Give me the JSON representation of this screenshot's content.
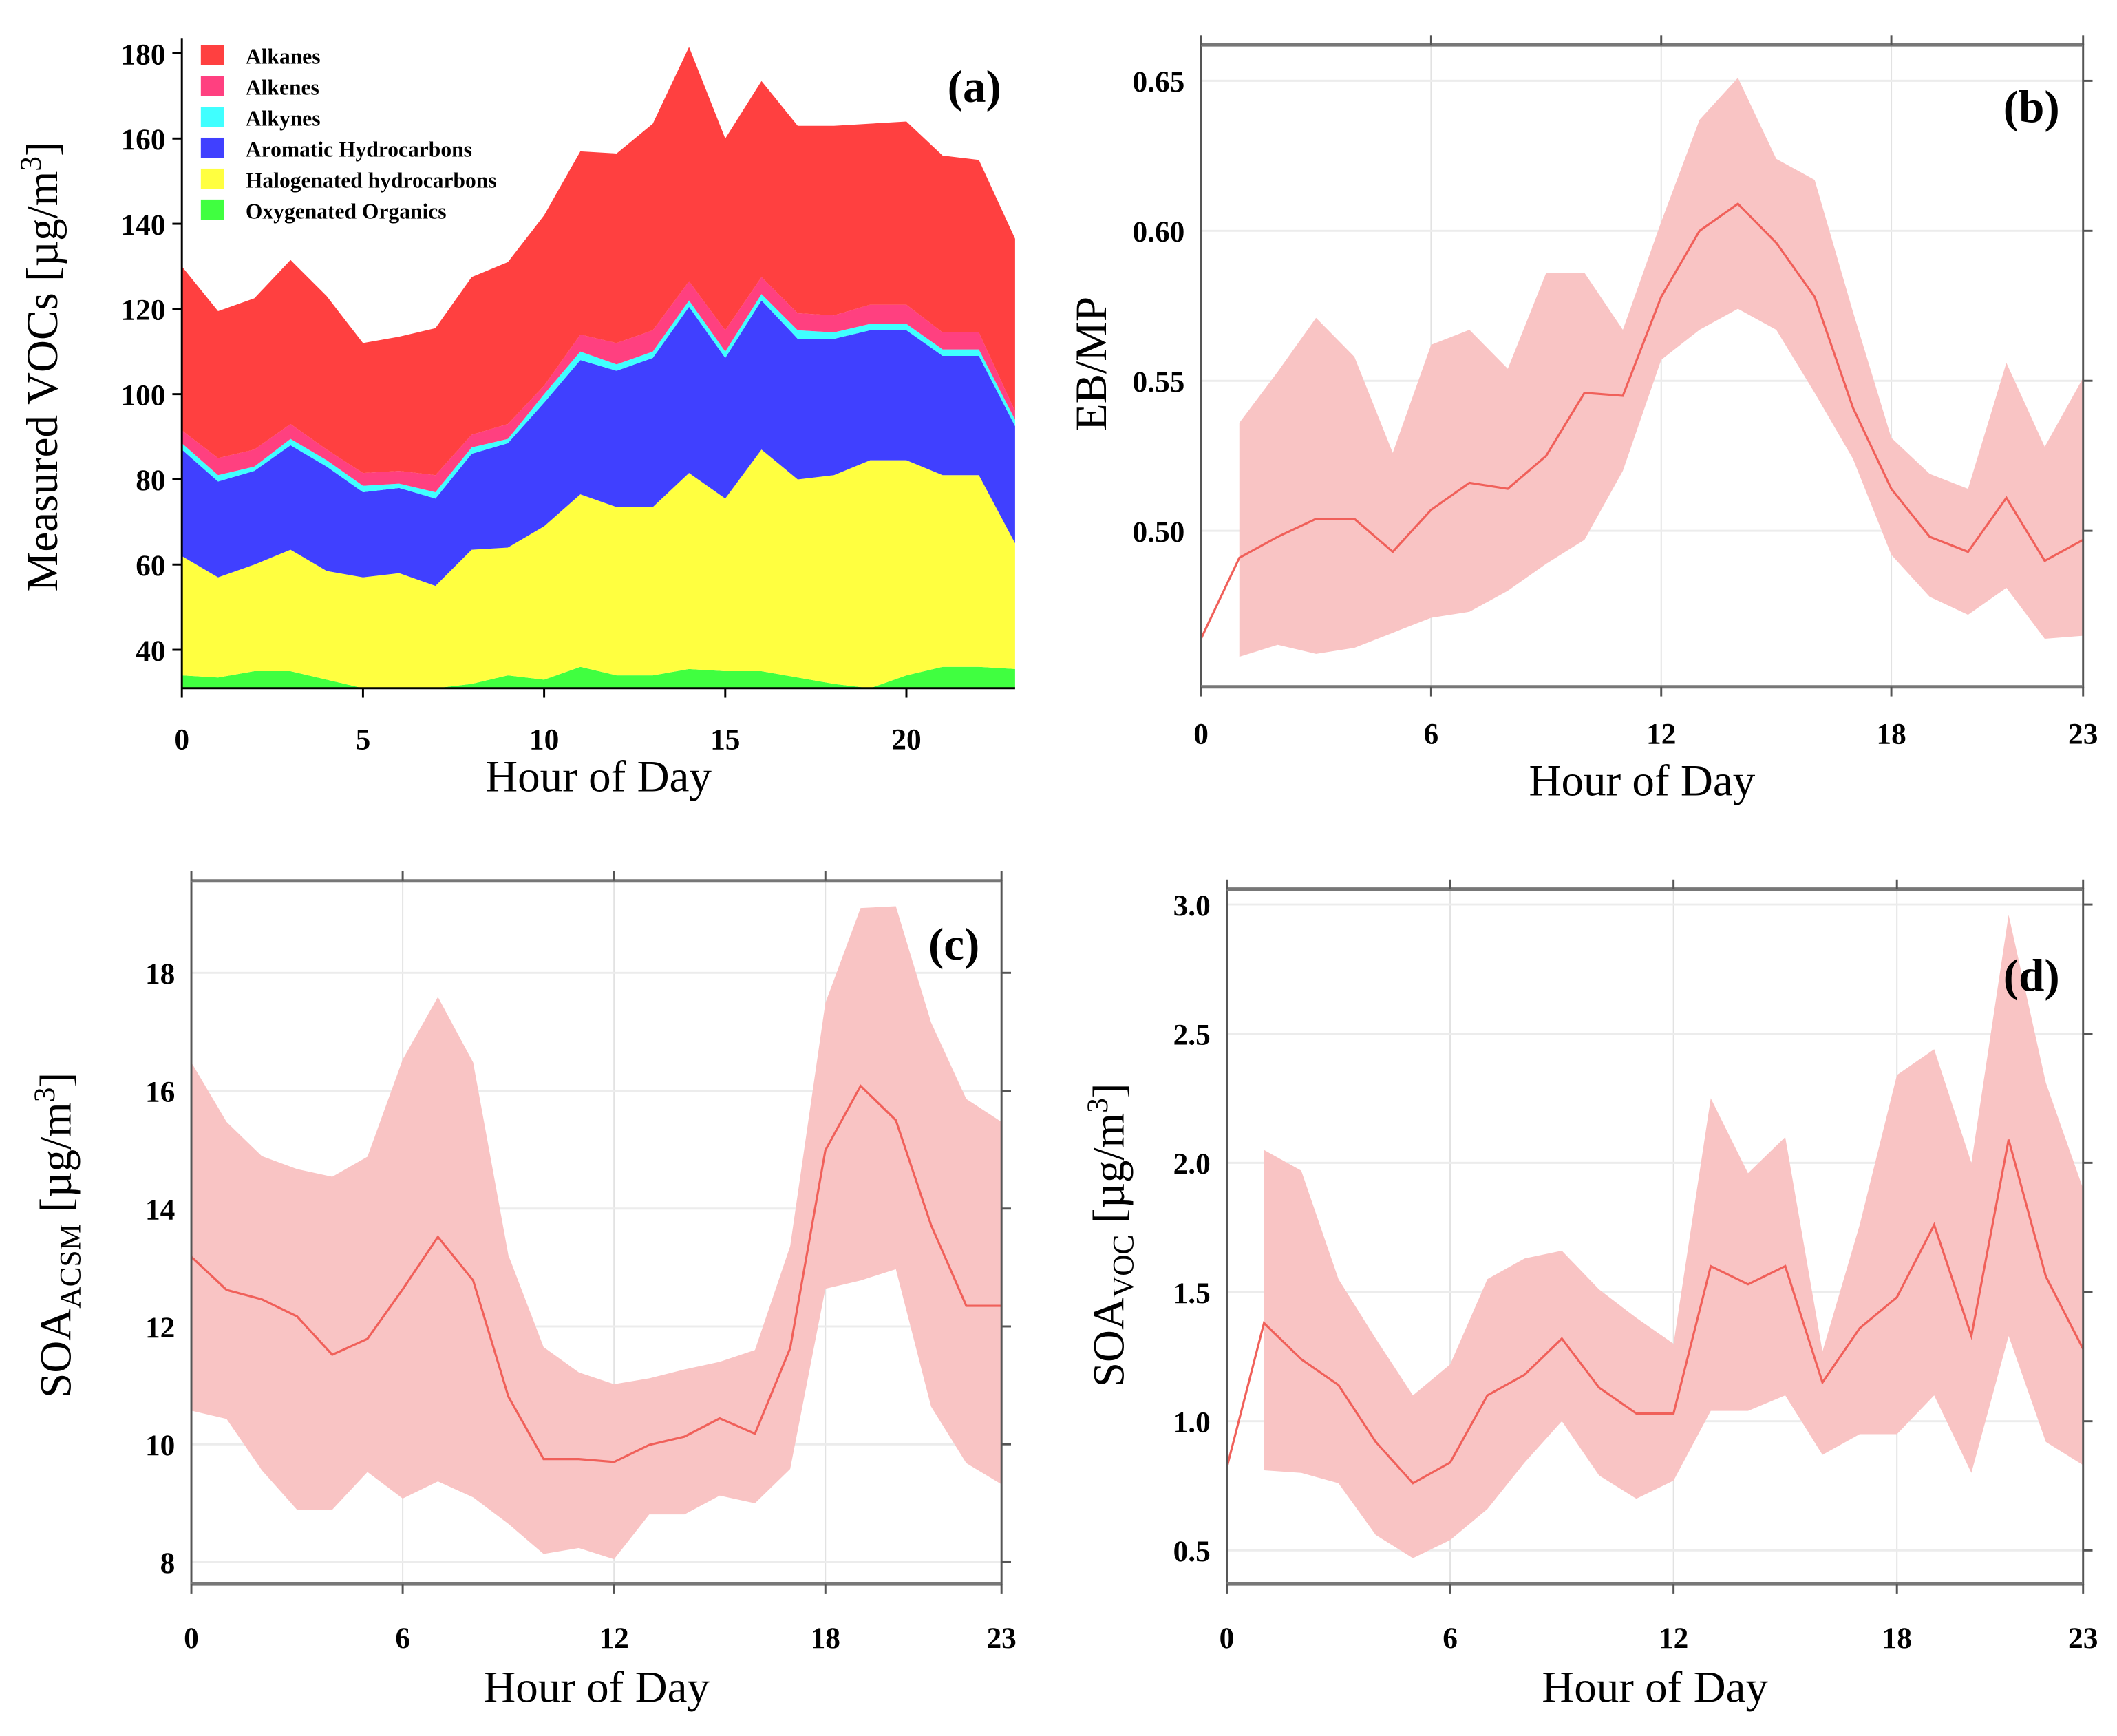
{
  "chart_data": [
    {
      "panel": "(a)",
      "type": "area",
      "stacked": true,
      "note": "values are cumulative upper boundaries of each stacked layer",
      "xlabel": "Hour of Day",
      "ylabel": {
        "main": "Measured VOCs [µg/m",
        "sup": "3",
        "end": "]"
      },
      "xlim": [
        0,
        23
      ],
      "ylim": [
        31,
        182
      ],
      "xticks": [
        0,
        5,
        10,
        15,
        20
      ],
      "yticks": [
        40,
        60,
        80,
        100,
        120,
        140,
        160,
        180
      ],
      "legend_position": "top-left",
      "x": [
        0,
        1,
        2,
        3,
        4,
        5,
        6,
        7,
        8,
        9,
        10,
        11,
        12,
        13,
        14,
        15,
        16,
        17,
        18,
        19,
        20,
        21,
        22,
        23
      ],
      "series": [
        {
          "name": "Oxygenated Organics",
          "color": "#40ff40",
          "values": [
            34,
            33.5,
            35,
            35,
            33,
            31,
            31,
            31,
            32,
            34,
            33,
            36,
            34,
            34,
            35.5,
            35,
            35,
            33.5,
            32,
            31,
            34,
            36,
            36,
            35.5
          ]
        },
        {
          "name": "Halogenated hydrocarbons",
          "color": "#ffff40",
          "values": [
            62,
            57,
            60,
            63.5,
            58.5,
            57,
            58,
            55,
            63.5,
            64,
            69,
            76.5,
            73.5,
            73.5,
            81.5,
            75.5,
            87,
            80,
            81,
            84.5,
            84.5,
            81,
            81,
            65
          ]
        },
        {
          "name": "Aromatic Hydrocarbons",
          "color": "#4040ff",
          "values": [
            87,
            79.5,
            82,
            88,
            83,
            77,
            78,
            75.5,
            86,
            88.5,
            98,
            108,
            105.5,
            108.5,
            120.5,
            108.5,
            122,
            113,
            113,
            115,
            115,
            109,
            109,
            92.5
          ]
        },
        {
          "name": "Alkynes",
          "color": "#40ffff",
          "values": [
            88.5,
            81,
            83,
            89.5,
            84.5,
            78.5,
            79,
            77,
            87.5,
            89.5,
            100,
            110,
            107,
            110,
            122,
            110,
            123.5,
            115,
            114.5,
            116.5,
            116.5,
            110.5,
            110.5,
            94
          ]
        },
        {
          "name": "Alkenes",
          "color": "#ff4080",
          "values": [
            91.5,
            85,
            87,
            93,
            87,
            81.5,
            82,
            81,
            90.5,
            93,
            102,
            114,
            112,
            115,
            126.5,
            115,
            127.5,
            119,
            118.5,
            121,
            121,
            114.5,
            114.5,
            96
          ]
        },
        {
          "name": "Alkanes",
          "color": "#ff4040",
          "values": [
            130,
            119.5,
            122.5,
            131.5,
            123,
            112,
            113.5,
            115.5,
            127.5,
            131,
            142,
            157,
            156.5,
            163.5,
            181.5,
            160,
            173.5,
            163,
            163,
            163.5,
            164,
            156,
            155,
            136.5
          ]
        }
      ],
      "legend_order": [
        "Alkanes",
        "Alkenes",
        "Alkynes",
        "Aromatic Hydrocarbons",
        "Halogenated hydrocarbons",
        "Oxygenated Organics"
      ]
    },
    {
      "panel": "(b)",
      "type": "line",
      "xlabel": "Hour of Day",
      "ylabel": {
        "main": "EB/MP"
      },
      "xlim": [
        0,
        23
      ],
      "ylim": [
        0.448,
        0.662
      ],
      "xticks": [
        0,
        6,
        12,
        18,
        23
      ],
      "yticks": [
        "0.50",
        "0.55",
        "0.60",
        "0.65"
      ],
      "grid": true,
      "line_color": "#f0605a",
      "band_color": "#f9c4c4",
      "x": [
        0,
        1,
        2,
        3,
        4,
        5,
        6,
        7,
        8,
        9,
        10,
        11,
        12,
        13,
        14,
        15,
        16,
        17,
        18,
        19,
        20,
        21,
        22,
        23
      ],
      "mean": [
        0.464,
        0.491,
        0.498,
        0.504,
        0.504,
        0.493,
        0.507,
        0.516,
        0.514,
        0.525,
        0.546,
        0.545,
        0.578,
        0.6,
        0.609,
        0.596,
        0.578,
        0.541,
        0.514,
        0.498,
        0.493,
        0.511,
        0.49,
        0.497
      ],
      "upper": [
        null,
        0.536,
        0.553,
        0.571,
        0.558,
        0.526,
        0.562,
        0.567,
        0.554,
        0.586,
        0.586,
        0.567,
        0.603,
        0.637,
        0.651,
        0.624,
        0.617,
        0.573,
        0.531,
        0.519,
        0.514,
        0.556,
        0.528,
        0.551
      ],
      "lower": [
        null,
        0.458,
        0.462,
        0.459,
        0.461,
        0.466,
        0.471,
        0.473,
        0.48,
        0.489,
        0.497,
        0.52,
        0.557,
        0.567,
        0.574,
        0.567,
        0.546,
        0.524,
        0.492,
        0.478,
        0.472,
        0.481,
        0.464,
        0.465
      ]
    },
    {
      "panel": "(c)",
      "type": "line",
      "xlabel": "Hour of Day",
      "ylabel": {
        "main": "SOA",
        "sub": "ACSM",
        "unit": " [µg/m",
        "sup": "3",
        "end": "]"
      },
      "xlim": [
        0,
        23
      ],
      "ylim": [
        7.63,
        19.56
      ],
      "xticks": [
        0,
        6,
        12,
        18,
        23
      ],
      "yticks": [
        "8",
        "10",
        "12",
        "14",
        "16",
        "18"
      ],
      "grid": true,
      "line_color": "#f0605a",
      "band_color": "#f9c4c4",
      "x": [
        0,
        1,
        2,
        3,
        4,
        5,
        6,
        7,
        8,
        9,
        10,
        11,
        12,
        13,
        14,
        15,
        16,
        17,
        18,
        19,
        20,
        21,
        22,
        23
      ],
      "mean": [
        13.18,
        12.62,
        12.46,
        12.17,
        11.52,
        11.79,
        12.63,
        13.52,
        12.78,
        10.81,
        9.75,
        9.75,
        9.7,
        9.99,
        10.13,
        10.44,
        10.18,
        11.63,
        14.99,
        16.08,
        15.5,
        13.72,
        12.35,
        12.35
      ],
      "upper": [
        16.48,
        15.47,
        14.89,
        14.67,
        14.54,
        14.88,
        16.53,
        17.59,
        16.48,
        13.21,
        11.65,
        11.22,
        11.02,
        11.12,
        11.27,
        11.4,
        11.6,
        13.36,
        17.49,
        19.1,
        19.13,
        17.16,
        15.86,
        15.47
      ],
      "lower": [
        10.57,
        10.43,
        9.56,
        8.89,
        8.89,
        9.53,
        9.08,
        9.37,
        9.1,
        8.65,
        8.14,
        8.24,
        8.05,
        8.81,
        8.81,
        9.13,
        9.0,
        9.58,
        12.64,
        12.78,
        12.97,
        10.64,
        9.68,
        9.32
      ]
    },
    {
      "panel": "(d)",
      "type": "line",
      "xlabel": "Hour of Day",
      "ylabel": {
        "main": "SOA",
        "sub": "VOC",
        "unit": " [µg/m",
        "sup": "3",
        "end": "]"
      },
      "xlim": [
        0,
        23
      ],
      "ylim": [
        0.37,
        3.06
      ],
      "xticks": [
        0,
        6,
        12,
        18,
        23
      ],
      "yticks": [
        "0.5",
        "1.0",
        "1.5",
        "2.0",
        "2.5",
        "3.0"
      ],
      "grid": true,
      "line_color": "#f0605a",
      "band_color": "#f9c4c4",
      "x": [
        0,
        1,
        2,
        3,
        4,
        5,
        6,
        7,
        8,
        9,
        10,
        11,
        12,
        13,
        14,
        15,
        16,
        17,
        18,
        19,
        20,
        21,
        22,
        23
      ],
      "mean": [
        0.82,
        1.38,
        1.24,
        1.14,
        0.92,
        0.76,
        0.84,
        1.1,
        1.18,
        1.32,
        1.13,
        1.03,
        1.03,
        1.6,
        1.53,
        1.6,
        1.15,
        1.36,
        1.48,
        1.76,
        1.33,
        2.09,
        1.56,
        1.28
      ],
      "upper": [
        null,
        2.05,
        1.97,
        1.55,
        1.32,
        1.1,
        1.22,
        1.55,
        1.63,
        1.66,
        1.51,
        1.4,
        1.3,
        2.25,
        1.96,
        2.1,
        1.27,
        1.76,
        2.34,
        2.44,
        2.0,
        2.96,
        2.31,
        1.9
      ],
      "lower": [
        null,
        0.81,
        0.8,
        0.76,
        0.56,
        0.47,
        0.54,
        0.66,
        0.84,
        1.0,
        0.79,
        0.7,
        0.77,
        1.04,
        1.04,
        1.1,
        0.87,
        0.95,
        0.95,
        1.1,
        0.8,
        1.33,
        0.92,
        0.83
      ]
    }
  ]
}
